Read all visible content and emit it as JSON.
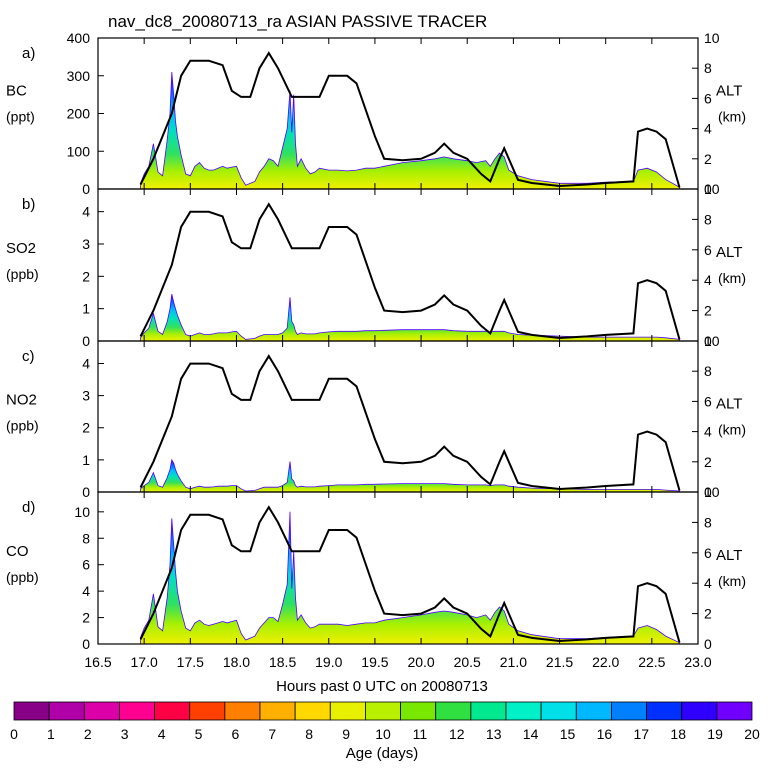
{
  "chart_data": {
    "type": "area",
    "title": "nav_dc8_20080713_ra ASIAN PASSIVE TRACER",
    "xlabel": "Hours past 0 UTC on 20080713",
    "x_ticks": [
      "16.5",
      "17.0",
      "17.5",
      "18.0",
      "18.5",
      "19.0",
      "19.5",
      "20.0",
      "20.5",
      "21.0",
      "21.5",
      "22.0",
      "22.5",
      "23.0"
    ],
    "xlim": [
      16.5,
      23.0
    ],
    "altitude_axis": {
      "label": "ALT",
      "unit": "(km)",
      "ticks": [
        "0",
        "2",
        "4",
        "6",
        "8",
        "10"
      ],
      "range": [
        0,
        10
      ]
    },
    "altitude_profile": {
      "x": [
        16.96,
        17.1,
        17.3,
        17.4,
        17.5,
        17.7,
        17.85,
        17.95,
        18.05,
        18.15,
        18.25,
        18.35,
        18.45,
        18.6,
        18.75,
        18.9,
        19.0,
        19.2,
        19.3,
        19.5,
        19.6,
        19.8,
        20.0,
        20.15,
        20.25,
        20.35,
        20.5,
        20.65,
        20.75,
        20.85,
        20.9,
        20.95,
        21.05,
        21.2,
        21.5,
        21.8,
        22.0,
        22.3,
        22.35,
        22.45,
        22.55,
        22.65,
        22.8
      ],
      "alt_km": [
        0.3,
        2.0,
        5.0,
        7.5,
        8.5,
        8.5,
        8.2,
        6.5,
        6.1,
        6.1,
        8.0,
        9.0,
        8.0,
        6.1,
        6.1,
        6.1,
        7.5,
        7.5,
        7.0,
        3.5,
        2.0,
        1.9,
        2.0,
        2.4,
        3.0,
        2.4,
        2.0,
        1.0,
        0.5,
        2.0,
        2.7,
        2.0,
        0.6,
        0.4,
        0.2,
        0.3,
        0.4,
        0.5,
        3.8,
        4.0,
        3.8,
        3.3,
        0.1
      ]
    },
    "colorbar": {
      "label": "Age (days)",
      "ticks": [
        "0",
        "1",
        "2",
        "3",
        "4",
        "5",
        "6",
        "7",
        "8",
        "9",
        "10",
        "11",
        "12",
        "13",
        "14",
        "15",
        "16",
        "17",
        "18",
        "19",
        "20"
      ],
      "colors": [
        "#880088",
        "#b000a8",
        "#dc00a8",
        "#ff0090",
        "#ff0044",
        "#ff4000",
        "#ff8000",
        "#ffb000",
        "#ffd800",
        "#e8f000",
        "#b8f000",
        "#78e800",
        "#30e040",
        "#00e890",
        "#00f0c8",
        "#00e0e8",
        "#00b8ff",
        "#0080ff",
        "#0030ff",
        "#3000ff",
        "#7000ff"
      ]
    },
    "panels": [
      {
        "letter": "a)",
        "species": "BC",
        "unit": "(ppt)",
        "y_ticks": [
          "0",
          "100",
          "200",
          "300",
          "400"
        ],
        "ylim": [
          0,
          400
        ],
        "x": [
          16.96,
          17.0,
          17.05,
          17.1,
          17.15,
          17.2,
          17.25,
          17.28,
          17.3,
          17.32,
          17.34,
          17.36,
          17.4,
          17.45,
          17.5,
          17.55,
          17.6,
          17.65,
          17.7,
          17.75,
          17.8,
          17.85,
          17.9,
          17.95,
          18.0,
          18.05,
          18.1,
          18.2,
          18.25,
          18.3,
          18.35,
          18.4,
          18.45,
          18.5,
          18.55,
          18.58,
          18.6,
          18.62,
          18.64,
          18.66,
          18.7,
          18.75,
          18.8,
          18.85,
          18.9,
          19.0,
          19.1,
          19.2,
          19.3,
          19.4,
          19.5,
          19.6,
          19.8,
          20.0,
          20.15,
          20.25,
          20.35,
          20.5,
          20.6,
          20.7,
          20.75,
          20.8,
          20.85,
          20.9,
          20.95,
          21.05,
          21.2,
          21.5,
          21.8,
          22.0,
          22.3,
          22.35,
          22.45,
          22.55,
          22.65,
          22.8
        ],
        "values": [
          15,
          40,
          60,
          120,
          45,
          35,
          130,
          200,
          310,
          250,
          180,
          140,
          90,
          40,
          35,
          60,
          70,
          55,
          50,
          50,
          55,
          60,
          55,
          58,
          60,
          30,
          10,
          20,
          45,
          60,
          80,
          75,
          60,
          110,
          160,
          260,
          150,
          250,
          120,
          60,
          80,
          55,
          40,
          45,
          55,
          50,
          50,
          48,
          50,
          55,
          55,
          60,
          70,
          75,
          80,
          85,
          80,
          75,
          70,
          75,
          60,
          80,
          95,
          85,
          50,
          35,
          25,
          15,
          15,
          18,
          20,
          50,
          55,
          45,
          25,
          5
        ]
      },
      {
        "letter": "b)",
        "species": "SO2",
        "unit": "(ppb)",
        "y_ticks": [
          "0",
          "1",
          "2",
          "3",
          "4"
        ],
        "ylim": [
          0,
          4.7
        ],
        "x": [
          16.96,
          17.0,
          17.05,
          17.1,
          17.15,
          17.2,
          17.25,
          17.28,
          17.3,
          17.32,
          17.34,
          17.36,
          17.4,
          17.45,
          17.5,
          17.55,
          17.6,
          17.65,
          17.7,
          17.75,
          17.8,
          17.85,
          17.9,
          17.95,
          18.0,
          18.05,
          18.1,
          18.2,
          18.25,
          18.3,
          18.35,
          18.4,
          18.45,
          18.5,
          18.55,
          18.58,
          18.6,
          18.62,
          18.64,
          18.66,
          18.7,
          18.75,
          18.8,
          18.85,
          18.9,
          19.0,
          19.1,
          19.2,
          19.3,
          19.4,
          19.5,
          19.6,
          19.8,
          20.0,
          20.15,
          20.25,
          20.35,
          20.5,
          20.6,
          20.7,
          20.75,
          20.8,
          20.85,
          20.9,
          20.95,
          21.05,
          21.2,
          21.5,
          21.8,
          22.0,
          22.3,
          22.35,
          22.45,
          22.55,
          22.65,
          22.8
        ],
        "values": [
          0.1,
          0.25,
          0.4,
          0.85,
          0.3,
          0.2,
          0.6,
          1.0,
          1.45,
          1.2,
          1.0,
          0.8,
          0.5,
          0.2,
          0.15,
          0.2,
          0.25,
          0.2,
          0.2,
          0.22,
          0.25,
          0.25,
          0.25,
          0.28,
          0.3,
          0.15,
          0.05,
          0.08,
          0.15,
          0.2,
          0.2,
          0.2,
          0.2,
          0.25,
          0.4,
          1.35,
          0.6,
          0.5,
          0.3,
          0.2,
          0.25,
          0.22,
          0.22,
          0.22,
          0.25,
          0.28,
          0.3,
          0.3,
          0.3,
          0.32,
          0.32,
          0.33,
          0.35,
          0.35,
          0.35,
          0.35,
          0.32,
          0.3,
          0.3,
          0.3,
          0.28,
          0.3,
          0.3,
          0.3,
          0.25,
          0.2,
          0.18,
          0.15,
          0.12,
          0.12,
          0.12,
          0.12,
          0.12,
          0.12,
          0.1,
          0.05
        ]
      },
      {
        "letter": "c)",
        "species": "NO2",
        "unit": "(ppb)",
        "y_ticks": [
          "0",
          "1",
          "2",
          "3",
          "4"
        ],
        "ylim": [
          0,
          4.7
        ],
        "x": [
          16.96,
          17.0,
          17.05,
          17.1,
          17.15,
          17.2,
          17.25,
          17.28,
          17.3,
          17.32,
          17.34,
          17.36,
          17.4,
          17.45,
          17.5,
          17.55,
          17.6,
          17.65,
          17.7,
          17.75,
          17.8,
          17.85,
          17.9,
          17.95,
          18.0,
          18.05,
          18.1,
          18.2,
          18.25,
          18.3,
          18.35,
          18.4,
          18.45,
          18.5,
          18.55,
          18.58,
          18.6,
          18.62,
          18.64,
          18.66,
          18.7,
          18.75,
          18.8,
          18.85,
          18.9,
          19.0,
          19.1,
          19.2,
          19.3,
          19.4,
          19.5,
          19.6,
          19.8,
          20.0,
          20.15,
          20.25,
          20.35,
          20.5,
          20.6,
          20.7,
          20.75,
          20.8,
          20.85,
          20.9,
          20.95,
          21.05,
          21.2,
          21.5,
          21.8,
          22.0,
          22.3,
          22.35,
          22.45,
          22.55,
          22.65,
          22.8
        ],
        "values": [
          0.1,
          0.2,
          0.3,
          0.6,
          0.2,
          0.15,
          0.45,
          0.7,
          1.0,
          0.9,
          0.7,
          0.55,
          0.35,
          0.15,
          0.1,
          0.15,
          0.18,
          0.15,
          0.15,
          0.16,
          0.18,
          0.18,
          0.18,
          0.2,
          0.2,
          0.1,
          0.03,
          0.05,
          0.1,
          0.15,
          0.15,
          0.15,
          0.15,
          0.2,
          0.3,
          0.95,
          0.4,
          0.35,
          0.2,
          0.15,
          0.18,
          0.16,
          0.16,
          0.16,
          0.18,
          0.2,
          0.22,
          0.22,
          0.22,
          0.24,
          0.24,
          0.25,
          0.26,
          0.26,
          0.26,
          0.26,
          0.24,
          0.22,
          0.22,
          0.22,
          0.2,
          0.22,
          0.22,
          0.22,
          0.18,
          0.15,
          0.12,
          0.1,
          0.08,
          0.08,
          0.08,
          0.08,
          0.08,
          0.08,
          0.06,
          0.03
        ]
      },
      {
        "letter": "d)",
        "species": "CO",
        "unit": "(ppb)",
        "y_ticks": [
          "0",
          "2",
          "4",
          "6",
          "8",
          "10"
        ],
        "ylim": [
          0,
          11.5
        ],
        "x": [
          16.96,
          17.0,
          17.05,
          17.1,
          17.15,
          17.2,
          17.25,
          17.28,
          17.3,
          17.32,
          17.34,
          17.36,
          17.4,
          17.45,
          17.5,
          17.55,
          17.6,
          17.65,
          17.7,
          17.75,
          17.8,
          17.85,
          17.9,
          17.95,
          18.0,
          18.05,
          18.1,
          18.2,
          18.25,
          18.3,
          18.35,
          18.4,
          18.45,
          18.5,
          18.55,
          18.58,
          18.6,
          18.62,
          18.64,
          18.66,
          18.7,
          18.75,
          18.8,
          18.85,
          18.9,
          19.0,
          19.1,
          19.2,
          19.3,
          19.4,
          19.5,
          19.6,
          19.8,
          20.0,
          20.15,
          20.25,
          20.35,
          20.5,
          20.6,
          20.7,
          20.75,
          20.8,
          20.85,
          20.9,
          20.95,
          21.05,
          21.2,
          21.5,
          21.8,
          22.0,
          22.3,
          22.35,
          22.45,
          22.55,
          22.65,
          22.8
        ],
        "values": [
          0.5,
          1.2,
          1.8,
          3.8,
          1.3,
          1.0,
          3.5,
          6.0,
          9.5,
          7.5,
          5.5,
          4.0,
          2.5,
          1.2,
          1.0,
          1.6,
          1.8,
          1.5,
          1.4,
          1.5,
          1.6,
          1.7,
          1.6,
          1.7,
          1.8,
          0.8,
          0.3,
          0.6,
          1.2,
          1.6,
          2.0,
          2.0,
          1.7,
          3.0,
          4.5,
          10.0,
          4.2,
          7.0,
          3.5,
          1.8,
          2.2,
          1.6,
          1.2,
          1.3,
          1.5,
          1.5,
          1.5,
          1.4,
          1.5,
          1.6,
          1.6,
          1.8,
          2.0,
          2.2,
          2.4,
          2.5,
          2.4,
          2.2,
          2.0,
          2.2,
          1.8,
          2.4,
          2.8,
          2.5,
          1.5,
          1.0,
          0.7,
          0.4,
          0.4,
          0.5,
          0.6,
          1.2,
          1.4,
          1.1,
          0.6,
          0.1
        ]
      }
    ]
  }
}
